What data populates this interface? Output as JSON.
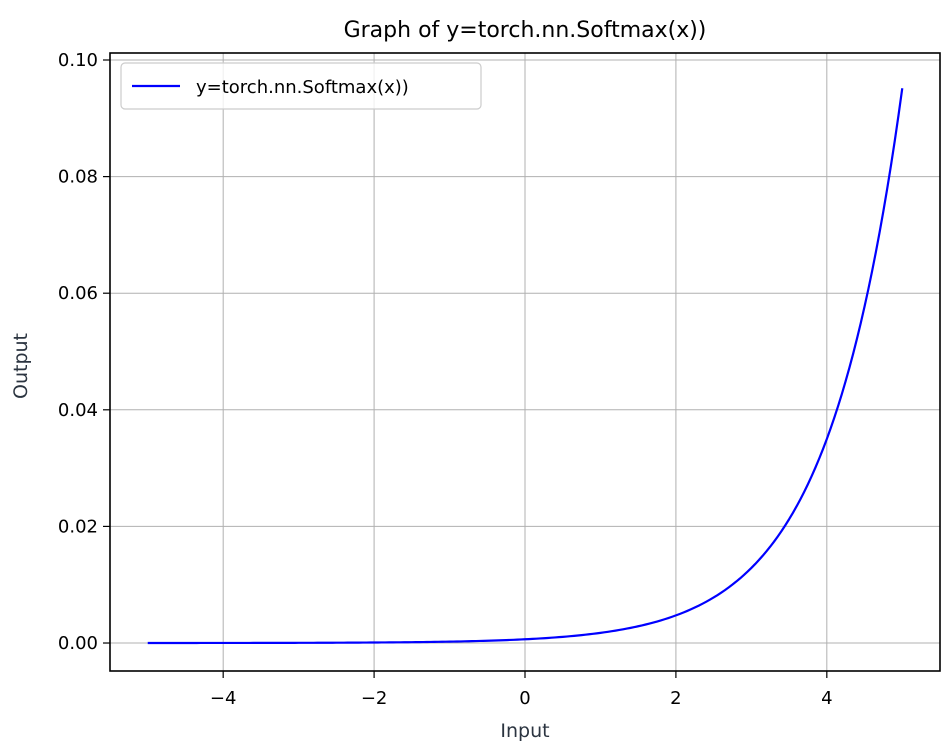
{
  "chart_data": {
    "type": "line",
    "title": "Graph of y=torch.nn.Softmax(x))",
    "xlabel": "Input",
    "ylabel": "Output",
    "xlim": [
      -5.5,
      5.5
    ],
    "ylim": [
      -0.0048,
      0.1012
    ],
    "grid": true,
    "legend_placement": "top-left",
    "x_ticks": [
      -4,
      -2,
      0,
      2,
      4
    ],
    "x_tick_labels": [
      "−4",
      "−2",
      "0",
      "2",
      "4"
    ],
    "y_ticks": [
      0.0,
      0.02,
      0.04,
      0.06,
      0.08,
      0.1
    ],
    "y_tick_labels": [
      "0.00",
      "0.02",
      "0.04",
      "0.06",
      "0.08",
      "0.10"
    ],
    "series": [
      {
        "name": "y=torch.nn.Softmax(x))",
        "color": "#0000ff",
        "x": [
          -5.0,
          -4.5,
          -4.0,
          -3.5,
          -3.0,
          -2.5,
          -2.0,
          -1.5,
          -1.0,
          -0.5,
          0.0,
          0.5,
          1.0,
          1.5,
          2.0,
          2.5,
          3.0,
          3.5,
          4.0,
          4.5,
          5.0
        ],
        "y": [
          4.3e-06,
          7.1e-06,
          1.17e-05,
          1.93e-05,
          3.19e-05,
          5.26e-05,
          8.67e-05,
          0.000143,
          0.000236,
          0.000389,
          0.000641,
          0.001057,
          0.001742,
          0.002873,
          0.004737,
          0.00781,
          0.01288,
          0.02123,
          0.035,
          0.05771,
          0.09515
        ]
      }
    ]
  }
}
